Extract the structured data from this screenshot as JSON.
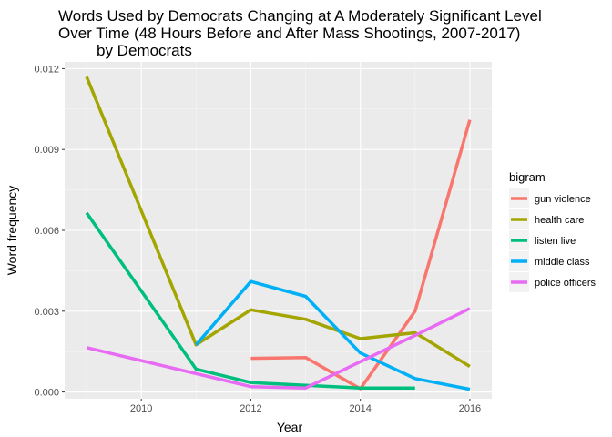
{
  "chart_data": {
    "type": "line",
    "title_lines": [
      "Words Used by Democrats Changing at A Moderately Significant Level",
      "Over Time (48 Hours Before and After Mass Shootings, 2007-2017)",
      "by Democrats"
    ],
    "xlabel": "Year",
    "ylabel": "Word frequency",
    "xlim": [
      2008.6,
      2016.4
    ],
    "ylim": [
      -0.00025,
      0.01225
    ],
    "x_ticks": [
      2010,
      2012,
      2014,
      2016
    ],
    "x_tick_labels": [
      "2010",
      "2012",
      "2014",
      "2016"
    ],
    "y_ticks": [
      0,
      0.003,
      0.006,
      0.009,
      0.012
    ],
    "y_tick_labels": [
      "0.000",
      "0.003",
      "0.006",
      "0.009",
      "0.012"
    ],
    "grid": true,
    "background": "#ebebeb",
    "legend": {
      "title": "bigram",
      "position": "right"
    },
    "series": [
      {
        "name": "gun violence",
        "color": "#f8766d",
        "x": [
          2012,
          2013,
          2014,
          2015,
          2016
        ],
        "y": [
          0.00125,
          0.00128,
          0.00012,
          0.003,
          0.0101
        ]
      },
      {
        "name": "health care",
        "color": "#a3a500",
        "x": [
          2009,
          2011,
          2012,
          2013,
          2014,
          2015,
          2016
        ],
        "y": [
          0.0117,
          0.00175,
          0.00305,
          0.0027,
          0.00198,
          0.0022,
          0.00095
        ]
      },
      {
        "name": "listen live",
        "color": "#00bf7d",
        "x": [
          2009,
          2011,
          2012,
          2013,
          2014,
          2015
        ],
        "y": [
          0.00665,
          0.00085,
          0.00035,
          0.00025,
          0.00015,
          0.00015
        ]
      },
      {
        "name": "middle class",
        "color": "#00b0f6",
        "x": [
          2011,
          2012,
          2013,
          2014,
          2015,
          2016
        ],
        "y": [
          0.00175,
          0.0041,
          0.00355,
          0.00145,
          0.0005,
          0.0001
        ]
      },
      {
        "name": "police officers",
        "color": "#e76bf3",
        "x": [
          2009,
          2012,
          2013,
          2015,
          2016
        ],
        "y": [
          0.00165,
          0.0002,
          0.00015,
          0.0021,
          0.0031
        ]
      }
    ]
  }
}
